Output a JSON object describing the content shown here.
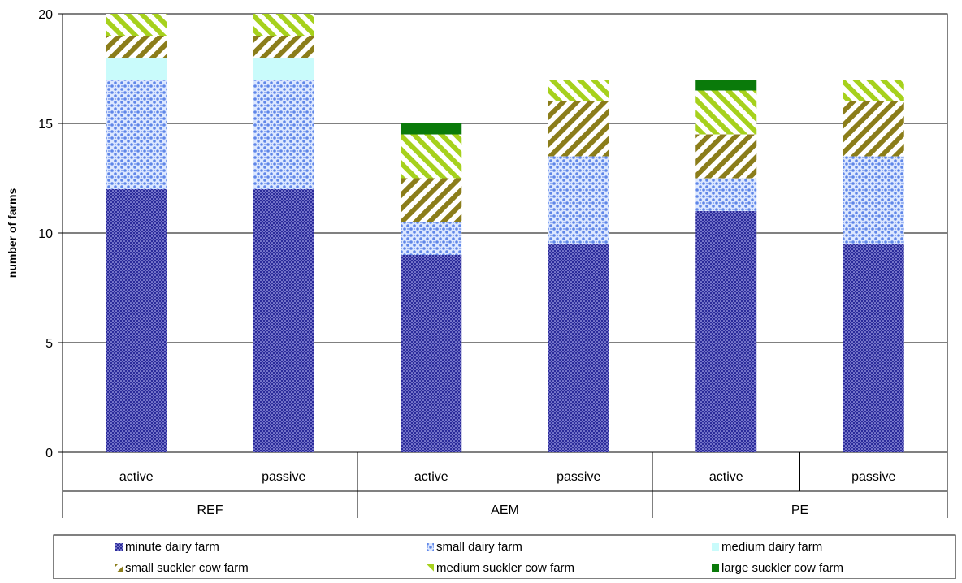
{
  "chart_data": {
    "type": "bar",
    "stacked": true,
    "ylabel": "number of farms",
    "ylim": [
      0,
      20
    ],
    "yticks": [
      0,
      5,
      10,
      15,
      20
    ],
    "grid": true,
    "legend_position": "bottom",
    "groups": [
      {
        "label": "REF",
        "categories": [
          "active",
          "passive"
        ]
      },
      {
        "label": "AEM",
        "categories": [
          "active",
          "passive"
        ]
      },
      {
        "label": "PE",
        "categories": [
          "active",
          "passive"
        ]
      }
    ],
    "categories": [
      "active",
      "passive",
      "active",
      "passive",
      "active",
      "passive"
    ],
    "series": [
      {
        "name": "minute dairy farm",
        "values": [
          12,
          12,
          9,
          9.5,
          11,
          9.5
        ],
        "color": "#2b2b9a",
        "pattern": "dense-dots"
      },
      {
        "name": "small dairy farm",
        "values": [
          5,
          5,
          1.5,
          4,
          1.5,
          4
        ],
        "color": "#5f86e8",
        "pattern": "dots"
      },
      {
        "name": "medium dairy farm",
        "values": [
          1,
          1,
          0,
          0,
          0,
          0
        ],
        "color": "#c9fbfb",
        "pattern": "solid"
      },
      {
        "name": "small suckler cow farm",
        "values": [
          1,
          1,
          2,
          2.5,
          2,
          2.5
        ],
        "color": "#8b7d1a",
        "pattern": "diagonal-down"
      },
      {
        "name": "medium suckler cow farm",
        "values": [
          1,
          1,
          2,
          1,
          2,
          1
        ],
        "color": "#a6d11c",
        "pattern": "diagonal-up"
      },
      {
        "name": "large suckler cow farm",
        "values": [
          0,
          0,
          0.5,
          0,
          0.5,
          0
        ],
        "color": "#0a7a0a",
        "pattern": "solid"
      }
    ]
  }
}
